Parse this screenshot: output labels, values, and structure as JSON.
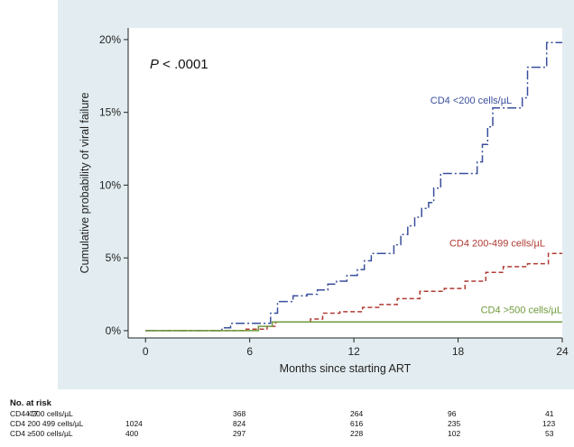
{
  "chart_data": {
    "type": "line",
    "annotation": "P < .0001",
    "xlabel": "Months since starting ART",
    "ylabel": "Cumulative probability of viral failure",
    "xlim": [
      -1,
      24
    ],
    "ylim": [
      -0.5,
      20.8
    ],
    "x_ticks": [
      0,
      6,
      12,
      18,
      24
    ],
    "y_ticks": [
      0,
      5,
      10,
      15,
      20
    ],
    "y_tick_labels": [
      "0%",
      "5%",
      "10%",
      "15%",
      "20%"
    ],
    "grid": false,
    "series": [
      {
        "name": "CD4 <200 cells/µL",
        "color": "#3a4f9c",
        "dash": "10 3 2 3",
        "label_at": [
          16.4,
          15.6
        ],
        "points": [
          [
            0,
            0
          ],
          [
            4.4,
            0.2
          ],
          [
            4.9,
            0.5
          ],
          [
            6.1,
            0.5
          ],
          [
            7.2,
            1.2
          ],
          [
            7.6,
            2.0
          ],
          [
            8.5,
            2.4
          ],
          [
            9.3,
            2.5
          ],
          [
            9.9,
            2.8
          ],
          [
            10.5,
            3.2
          ],
          [
            11.0,
            3.4
          ],
          [
            11.6,
            3.8
          ],
          [
            12.2,
            4.2
          ],
          [
            12.6,
            4.8
          ],
          [
            13.0,
            5.3
          ],
          [
            13.7,
            5.3
          ],
          [
            14.3,
            5.9
          ],
          [
            14.7,
            6.6
          ],
          [
            15.1,
            7.2
          ],
          [
            15.5,
            7.8
          ],
          [
            15.9,
            8.4
          ],
          [
            16.3,
            8.8
          ],
          [
            16.6,
            9.8
          ],
          [
            17.0,
            10.8
          ],
          [
            18.8,
            10.8
          ],
          [
            19.1,
            11.6
          ],
          [
            19.4,
            12.8
          ],
          [
            19.7,
            14.0
          ],
          [
            20.0,
            15.3
          ],
          [
            21.2,
            15.3
          ],
          [
            21.7,
            16.0
          ],
          [
            22.0,
            18.1
          ],
          [
            22.8,
            18.1
          ],
          [
            23.1,
            19.8
          ],
          [
            24.0,
            19.8
          ]
        ]
      },
      {
        "name": "CD4 200-499 cells/µL",
        "color": "#b03a33",
        "dash": "5 3",
        "label_at": [
          17.5,
          5.8
        ],
        "points": [
          [
            0,
            0
          ],
          [
            5.5,
            0
          ],
          [
            5.8,
            0.1
          ],
          [
            7.0,
            0.3
          ],
          [
            7.5,
            0.6
          ],
          [
            9.5,
            0.8
          ],
          [
            10.2,
            1.2
          ],
          [
            11.2,
            1.3
          ],
          [
            12.5,
            1.6
          ],
          [
            13.5,
            1.8
          ],
          [
            14.5,
            2.2
          ],
          [
            15.8,
            2.7
          ],
          [
            17.2,
            2.9
          ],
          [
            18.4,
            3.4
          ],
          [
            19.6,
            4.0
          ],
          [
            20.6,
            4.4
          ],
          [
            22.0,
            4.6
          ],
          [
            23.2,
            5.3
          ],
          [
            24.0,
            5.3
          ]
        ]
      },
      {
        "name": "CD4 >500 cells/µL",
        "color": "#6f9a3c",
        "dash": "",
        "label_at": [
          19.3,
          1.2
        ],
        "points": [
          [
            0,
            0
          ],
          [
            5.8,
            0
          ],
          [
            6.5,
            0.3
          ],
          [
            7.3,
            0.6
          ],
          [
            24.0,
            0.6
          ]
        ]
      }
    ]
  },
  "risk_table": {
    "title": "No. at risk",
    "rows": [
      {
        "label": "CD4 <200 cells/µL",
        "values": [
          "477",
          "368",
          "264",
          "96",
          "41"
        ]
      },
      {
        "label": "CD4 200 499 cells/µL",
        "values": [
          "1024",
          "824",
          "616",
          "235",
          "123"
        ]
      },
      {
        "label": "CD4 ≥500 cells/µL",
        "values": [
          "400",
          "297",
          "228",
          "102",
          "53"
        ]
      }
    ]
  }
}
